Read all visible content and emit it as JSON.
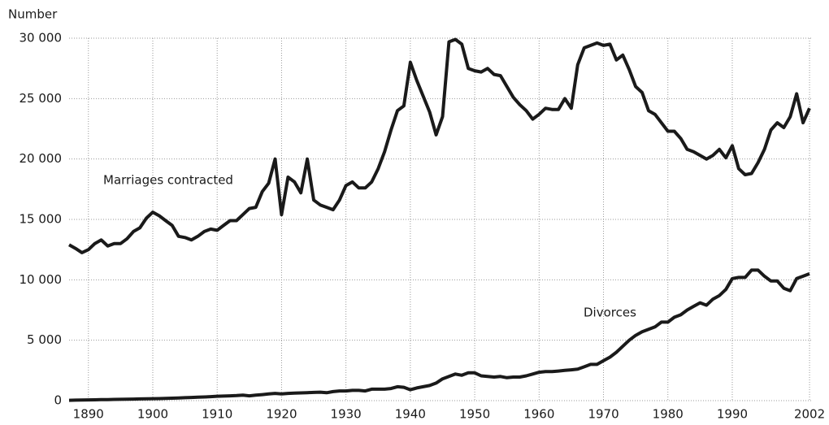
{
  "chart_data": {
    "type": "line",
    "y_label": "Number",
    "x": [
      1887,
      1888,
      1889,
      1890,
      1891,
      1892,
      1893,
      1894,
      1895,
      1896,
      1897,
      1898,
      1899,
      1900,
      1901,
      1902,
      1903,
      1904,
      1905,
      1906,
      1907,
      1908,
      1909,
      1910,
      1911,
      1912,
      1913,
      1914,
      1915,
      1916,
      1917,
      1918,
      1919,
      1920,
      1921,
      1922,
      1923,
      1924,
      1925,
      1926,
      1927,
      1928,
      1929,
      1930,
      1931,
      1932,
      1933,
      1934,
      1935,
      1936,
      1937,
      1938,
      1939,
      1940,
      1941,
      1942,
      1943,
      1944,
      1945,
      1946,
      1947,
      1948,
      1949,
      1950,
      1951,
      1952,
      1953,
      1954,
      1955,
      1956,
      1957,
      1958,
      1959,
      1960,
      1961,
      1962,
      1963,
      1964,
      1965,
      1966,
      1967,
      1968,
      1969,
      1970,
      1971,
      1972,
      1973,
      1974,
      1975,
      1976,
      1977,
      1978,
      1979,
      1980,
      1981,
      1982,
      1983,
      1984,
      1985,
      1986,
      1987,
      1988,
      1989,
      1990,
      1991,
      1992,
      1993,
      1994,
      1995,
      1996,
      1997,
      1998,
      1999,
      2000,
      2001,
      2002
    ],
    "series": [
      {
        "name": "Marriages contracted",
        "color": "#1a1a1a",
        "values": [
          12900,
          12600,
          12250,
          12500,
          13000,
          13300,
          12800,
          13000,
          13000,
          13400,
          14000,
          14300,
          15100,
          15600,
          15300,
          14900,
          14500,
          13600,
          13500,
          13300,
          13600,
          14000,
          14200,
          14100,
          14500,
          14900,
          14900,
          15400,
          15900,
          16000,
          17300,
          18000,
          20000,
          15400,
          18500,
          18100,
          17200,
          20000,
          16600,
          16200,
          16000,
          15800,
          16600,
          17800,
          18100,
          17600,
          17600,
          18100,
          19200,
          20600,
          22400,
          24000,
          24400,
          28000,
          26500,
          25200,
          23900,
          22000,
          23500,
          29700,
          29900,
          29500,
          27500,
          27300,
          27200,
          27500,
          27000,
          26900,
          26000,
          25100,
          24500,
          24000,
          23300,
          23700,
          24200,
          24100,
          24100,
          25000,
          24200,
          27800,
          29200,
          29400,
          29600,
          29400,
          29500,
          28200,
          28600,
          27400,
          26000,
          25500,
          24000,
          23700,
          23000,
          22300,
          22300,
          21700,
          20800,
          20600,
          20300,
          20000,
          20300,
          20800,
          20100,
          21100,
          19200,
          18700,
          18800,
          19700,
          20800,
          22400,
          23000,
          22600,
          23500,
          25400,
          23000,
          24200
        ]
      },
      {
        "name": "Divorces",
        "color": "#1a1a1a",
        "values": [
          30,
          40,
          50,
          60,
          70,
          80,
          90,
          100,
          110,
          120,
          130,
          140,
          150,
          160,
          170,
          180,
          200,
          220,
          240,
          260,
          280,
          300,
          330,
          360,
          380,
          400,
          420,
          450,
          400,
          450,
          500,
          550,
          600,
          550,
          600,
          620,
          640,
          660,
          680,
          700,
          650,
          750,
          800,
          800,
          850,
          850,
          800,
          950,
          950,
          950,
          1000,
          1150,
          1100,
          900,
          1050,
          1150,
          1250,
          1450,
          1800,
          2000,
          2200,
          2100,
          2300,
          2300,
          2050,
          2000,
          1950,
          2000,
          1900,
          1950,
          1950,
          2050,
          2200,
          2350,
          2400,
          2400,
          2450,
          2500,
          2550,
          2600,
          2800,
          3000,
          3000,
          3300,
          3600,
          4000,
          4500,
          5000,
          5400,
          5700,
          5900,
          6100,
          6500,
          6500,
          6900,
          7100,
          7500,
          7800,
          8100,
          7900,
          8400,
          8700,
          9200,
          10100,
          10200,
          10200,
          10800,
          10800,
          10300,
          9900,
          9900,
          9300,
          9100,
          10100,
          10300,
          10500
        ]
      }
    ],
    "xlim": [
      1887,
      2002.5
    ],
    "xticks": [
      1890,
      1900,
      1910,
      1920,
      1930,
      1940,
      1950,
      1960,
      1970,
      1980,
      1990,
      2002
    ],
    "ylim": [
      0,
      30000
    ],
    "yticks": [
      0,
      {
        "value": 5000,
        "label": "5 000"
      },
      {
        "value": 10000,
        "label": "10 000"
      },
      {
        "value": 15000,
        "label": "15 000"
      },
      {
        "value": 20000,
        "label": "20 000"
      },
      {
        "value": 25000,
        "label": "25 000"
      },
      {
        "value": 30000,
        "label": "30 000"
      }
    ],
    "grid": true
  }
}
